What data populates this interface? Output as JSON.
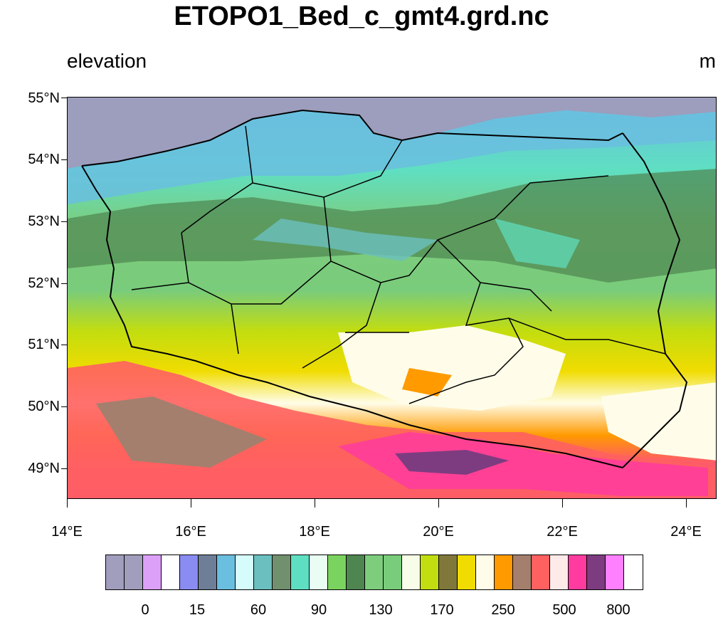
{
  "title": "ETOPO1_Bed_c_gmt4.grd.nc",
  "left_label": "elevation",
  "right_label": "m",
  "lat_labels": [
    "55°N",
    "54°N",
    "53°N",
    "52°N",
    "51°N",
    "50°N",
    "49°N"
  ],
  "lon_labels": [
    "14°E",
    "16°E",
    "18°E",
    "20°E",
    "22°E",
    "24°E"
  ],
  "colorbar": {
    "colors": [
      "#a09ebc",
      "#a09ebc",
      "#dda0f8",
      "#ffffff",
      "#8a8cf2",
      "#6e7e96",
      "#6abedf",
      "#d6fbfb",
      "#6bbfbf",
      "#70906e",
      "#5fdfc2",
      "#e9fdf3",
      "#7bd35f",
      "#4e8550",
      "#7dcd7d",
      "#79cc7b",
      "#f7fde9",
      "#c2dd10",
      "#80783a",
      "#f0dc00",
      "#fffde9",
      "#ff9a00",
      "#a47f6e",
      "#ff6060",
      "#ffeaea",
      "#ff3b9f",
      "#7e3c80",
      "#ff80ff",
      "#ffffff"
    ],
    "labels": [
      "0",
      "15",
      "60",
      "90",
      "130",
      "170",
      "250",
      "500",
      "800"
    ]
  },
  "sea_color": "#9d9dbd"
}
